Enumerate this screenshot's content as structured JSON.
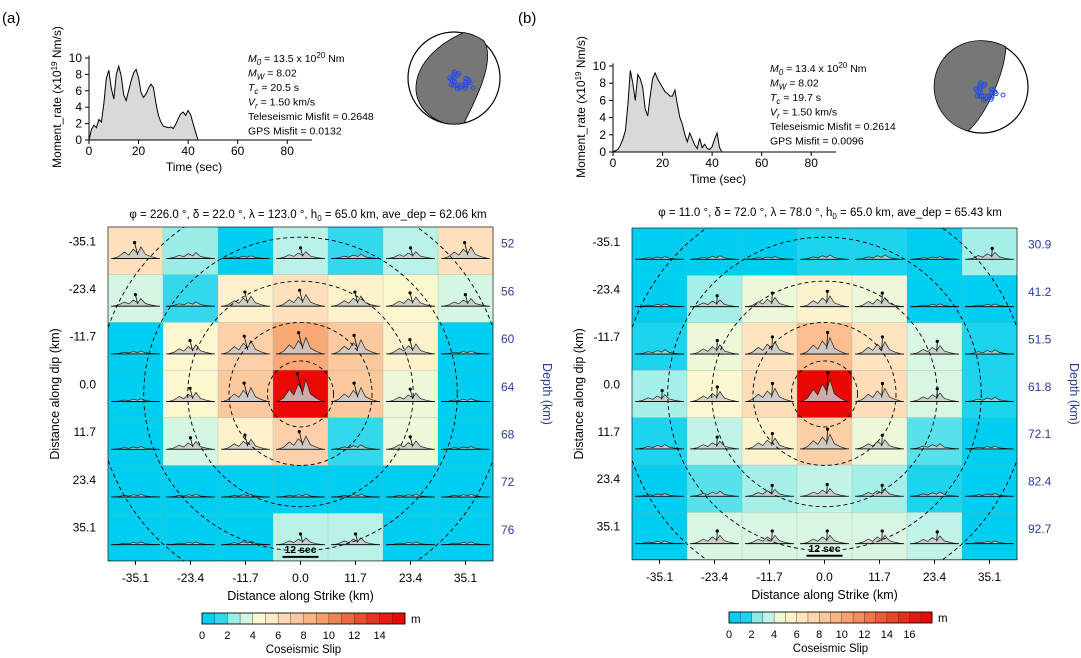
{
  "figure": {
    "depth_axis_label": "Depth (km)",
    "colorbar_title": "Coseismic Slip",
    "colorbar_unit": "m",
    "time_bar_label": "12 sec"
  },
  "chart_data": [
    {
      "panel": "(a)",
      "moment_rate": {
        "type": "area",
        "ylabel": "Moment_rate (x10",
        "ylabel_exp": "19",
        "ylabel_tail": " Nm/s)",
        "xlabel": "Time (sec)",
        "xlim": [
          0,
          90
        ],
        "ylim": [
          0,
          10
        ],
        "xticks": [
          0,
          20,
          40,
          60,
          80
        ],
        "yticks": [
          0,
          2,
          4,
          6,
          8,
          10
        ],
        "t": [
          0,
          1,
          2,
          3,
          4,
          5,
          6,
          7,
          8,
          9,
          10,
          11,
          12,
          13,
          14,
          15,
          16,
          17,
          18,
          19,
          20,
          21,
          22,
          23,
          24,
          25,
          26,
          27,
          28,
          29,
          30,
          31,
          32,
          33,
          34,
          35,
          36,
          37,
          38,
          39,
          40,
          41,
          42,
          43,
          44
        ],
        "rate": [
          0,
          1.3,
          1.8,
          1.5,
          2.5,
          2.2,
          4.5,
          7.5,
          8.5,
          6.3,
          5.0,
          8.0,
          9.0,
          7.8,
          5.5,
          4.8,
          6.0,
          7.2,
          8.2,
          8.6,
          7.6,
          5.8,
          5.2,
          5.6,
          6.3,
          6.8,
          6.4,
          4.5,
          3.0,
          2.2,
          1.7,
          1.6,
          1.5,
          1.6,
          1.4,
          1.9,
          2.6,
          3.2,
          3.4,
          3.0,
          3.6,
          3.1,
          2.0,
          1.0,
          0
        ]
      },
      "stats": [
        {
          "name": "M",
          "sub": "0",
          "value": " = 13.5 x 10",
          "exp": "20",
          "unit": " Nm"
        },
        {
          "name": "M",
          "sub": "W",
          "value": " = 8.02",
          "exp": "",
          "unit": ""
        },
        {
          "name": "T",
          "sub": "c",
          "value": " = 20.5 s",
          "exp": "",
          "unit": ""
        },
        {
          "name": "V",
          "sub": "r",
          "value": " = 1.50 km/s",
          "exp": "",
          "unit": ""
        },
        {
          "name": "Teleseismic Misfit = 0.2648",
          "sub": "",
          "value": "",
          "exp": "",
          "unit": ""
        },
        {
          "name": "GPS Misfit = 0.0132",
          "sub": "",
          "value": "",
          "exp": "",
          "unit": ""
        }
      ],
      "fault_params": "φ = 226.0 °, δ = 22.0 °, λ = 123.0 °, h",
      "fault_params_sub": "0",
      "fault_params_tail": " = 65.0 km, ave_dep = 62.06 km",
      "slip_map": {
        "type": "heatmap",
        "xlabel": "Distance along Strike (km)",
        "ylabel": "Distance along dip (km)",
        "xticks": [
          "-35.1",
          "-23.4",
          "-11.7",
          "0.0",
          "11.7",
          "23.4",
          "35.1"
        ],
        "yticks": [
          "-35.1",
          "-23.4",
          "-11.7",
          "0.0",
          "11.7",
          "23.4",
          "35.1"
        ],
        "depth_ticks": [
          "52",
          "56",
          "60",
          "64",
          "68",
          "72",
          "76"
        ],
        "colorbar_ticks": [
          "0",
          "2",
          "4",
          "6",
          "8",
          "10",
          "12",
          "14"
        ],
        "colorbar_max": 16,
        "slip": [
          [
            6.0,
            2.5,
            0.5,
            3.0,
            1.5,
            3.0,
            6.0
          ],
          [
            3.5,
            1.5,
            5.0,
            6.0,
            5.0,
            4.5,
            3.5
          ],
          [
            0.5,
            4.5,
            7.0,
            9.0,
            7.5,
            5.0,
            0.5
          ],
          [
            0.5,
            4.5,
            7.5,
            15.5,
            7.5,
            4.0,
            0.5
          ],
          [
            0.5,
            3.5,
            5.0,
            7.0,
            1.5,
            4.0,
            0.5
          ],
          [
            0.5,
            0.5,
            0.5,
            0.5,
            0.5,
            0.5,
            0.5
          ],
          [
            0.5,
            0.5,
            1.0,
            3.0,
            3.0,
            0.5,
            0.5
          ]
        ]
      }
    },
    {
      "panel": "(b)",
      "moment_rate": {
        "type": "area",
        "ylabel": "Moment_rate (x10",
        "ylabel_exp": "19",
        "ylabel_tail": " Nm/s)",
        "xlabel": "Time (sec)",
        "xlim": [
          0,
          90
        ],
        "ylim": [
          0,
          10
        ],
        "xticks": [
          0,
          20,
          40,
          60,
          80
        ],
        "yticks": [
          0,
          2,
          4,
          6,
          8,
          10
        ],
        "t": [
          0,
          2,
          3,
          4,
          5,
          6,
          7,
          8,
          9,
          10,
          11,
          12,
          13,
          14,
          15,
          16,
          17,
          18,
          19,
          20,
          21,
          22,
          23,
          24,
          25,
          26,
          27,
          28,
          29,
          30,
          31,
          32,
          33,
          34,
          35,
          36,
          37,
          38,
          39,
          40,
          41,
          42,
          43,
          44
        ],
        "rate": [
          0,
          0.3,
          0.8,
          1.5,
          2.5,
          5.5,
          9.5,
          8.0,
          6.0,
          9.0,
          8.5,
          7.5,
          5.0,
          4.2,
          6.5,
          8.5,
          9.2,
          8.5,
          8.0,
          7.5,
          7.0,
          6.8,
          6.5,
          6.5,
          7.2,
          5.5,
          4.0,
          3.2,
          2.0,
          1.2,
          2.2,
          1.5,
          0.8,
          0.4,
          1.6,
          0.5,
          0.9,
          0.4,
          0.3,
          0.6,
          1.5,
          2.2,
          0.5,
          0
        ]
      },
      "stats": [
        {
          "name": "M",
          "sub": "0",
          "value": " = 13.4 x 10",
          "exp": "20",
          "unit": " Nm"
        },
        {
          "name": "M",
          "sub": "W",
          "value": " = 8.02",
          "exp": "",
          "unit": ""
        },
        {
          "name": "T",
          "sub": "c",
          "value": " = 19.7 s",
          "exp": "",
          "unit": ""
        },
        {
          "name": "V",
          "sub": "r",
          "value": " = 1.50 km/s",
          "exp": "",
          "unit": ""
        },
        {
          "name": "Teleseismic Misfit = 0.2614",
          "sub": "",
          "value": "",
          "exp": "",
          "unit": ""
        },
        {
          "name": "GPS Misfit = 0.0096",
          "sub": "",
          "value": "",
          "exp": "",
          "unit": ""
        }
      ],
      "fault_params": "φ = 11.0 °, δ = 72.0 °, λ = 78.0 °, h",
      "fault_params_sub": "0",
      "fault_params_tail": " = 65.0 km, ave_dep = 65.43 km",
      "slip_map": {
        "type": "heatmap",
        "xlabel": "Distance along Strike (km)",
        "ylabel": "Distance along dip (km)",
        "xticks": [
          "-35.1",
          "-23.4",
          "-11.7",
          "0.0",
          "11.7",
          "23.4",
          "35.1"
        ],
        "yticks": [
          "-35.1",
          "-23.4",
          "-11.7",
          "0.0",
          "11.7",
          "23.4",
          "35.1"
        ],
        "depth_ticks": [
          "30.9",
          "41.2",
          "51.5",
          "61.8",
          "72.1",
          "82.4",
          "92.7"
        ],
        "colorbar_ticks": [
          "0",
          "2",
          "4",
          "6",
          "8",
          "10",
          "12",
          "14",
          "16"
        ],
        "colorbar_max": 18,
        "slip": [
          [
            0.5,
            1.0,
            0.5,
            1.5,
            1.5,
            0.5,
            3.0
          ],
          [
            0.5,
            3.0,
            4.5,
            5.5,
            4.5,
            0.5,
            0.5
          ],
          [
            1.5,
            4.5,
            6.5,
            9.0,
            6.5,
            4.0,
            1.5
          ],
          [
            3.0,
            5.0,
            7.0,
            17.5,
            7.0,
            4.0,
            1.5
          ],
          [
            1.5,
            3.5,
            5.5,
            8.0,
            4.5,
            2.0,
            0.5
          ],
          [
            0.5,
            2.0,
            3.0,
            3.5,
            3.0,
            1.5,
            0.5
          ],
          [
            0.5,
            4.0,
            4.0,
            4.0,
            4.0,
            3.5,
            0.5
          ]
        ]
      }
    }
  ],
  "icons": {
    "beachball": "focal-mechanism-beachball-icon"
  },
  "colors": {
    "moment_fill": "#d9d9d9",
    "beachball_shade": "#777777",
    "stations": "#2a4de0",
    "depth_labels": "#2a3c9c"
  }
}
